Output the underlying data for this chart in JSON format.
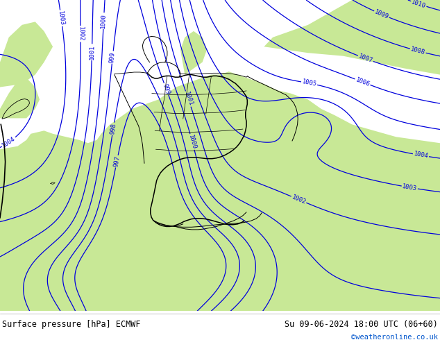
{
  "title_left": "Surface pressure [hPa] ECMWF",
  "title_right": "Su 09-06-2024 18:00 UTC (06+60)",
  "copyright": "©weatheronline.co.uk",
  "bg_color_land_green": "#c8e896",
  "bg_color_sea_gray": "#c8c8c8",
  "contour_color": "#0000dd",
  "border_color": "#000000",
  "label_color": "#0000dd",
  "footer_text_color": "#000000",
  "copyright_color": "#0055cc",
  "figsize": [
    6.34,
    4.9
  ],
  "dpi": 100
}
